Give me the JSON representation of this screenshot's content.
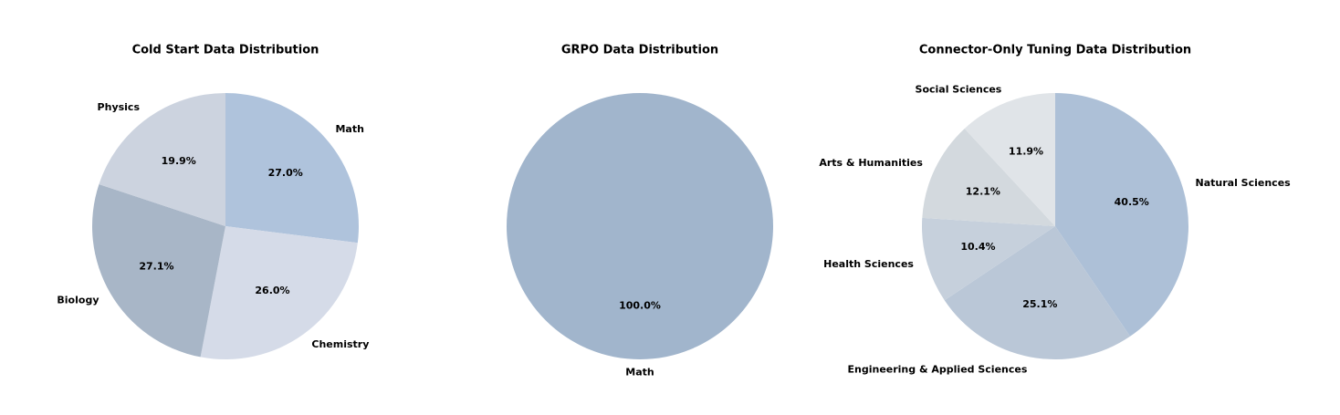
{
  "chart_data": [
    {
      "type": "pie",
      "title": "Cold Start Data Distribution",
      "categories": [
        "Math",
        "Chemistry",
        "Biology",
        "Physics"
      ],
      "values": [
        27.0,
        26.0,
        27.1,
        19.9
      ],
      "value_labels": [
        "27.0%",
        "26.0%",
        "27.1%",
        "19.9%"
      ],
      "colors": [
        "#afc3dc",
        "#d5dbe8",
        "#a8b6c7",
        "#ccd3df"
      ]
    },
    {
      "type": "pie",
      "title": "GRPO Data Distribution",
      "categories": [
        "Math"
      ],
      "values": [
        100.0
      ],
      "value_labels": [
        "100.0%"
      ],
      "colors": [
        "#a1b5cc"
      ]
    },
    {
      "type": "pie",
      "title": "Connector-Only Tuning Data Distribution",
      "categories": [
        "Natural Sciences",
        "Engineering & Applied Sciences",
        "Health Sciences",
        "Arts & Humanities",
        "Social Sciences"
      ],
      "values": [
        40.5,
        25.1,
        10.4,
        12.1,
        11.9
      ],
      "value_labels": [
        "40.5%",
        "25.1%",
        "10.4%",
        "12.1%",
        "11.9%"
      ],
      "colors": [
        "#adc0d7",
        "#bac7d7",
        "#c6d0dc",
        "#d3d9de",
        "#e0e4e8"
      ]
    }
  ]
}
